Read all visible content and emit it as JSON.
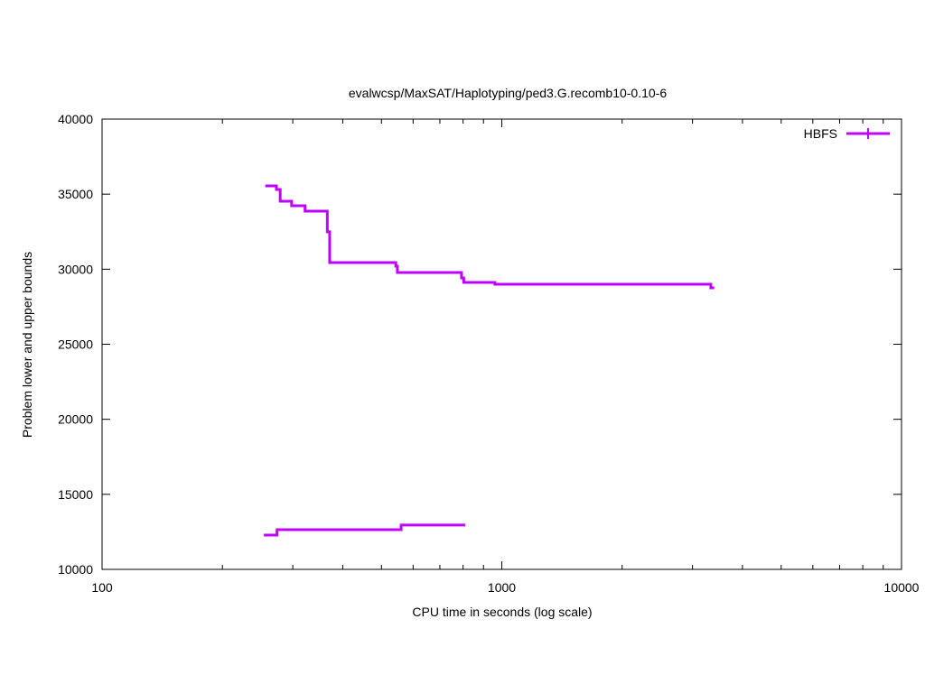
{
  "chart_data": {
    "type": "line",
    "title": "evalwcsp/MaxSAT/Haplotyping/ped3.G.recomb10-0.10-6",
    "xlabel": "CPU time in seconds (log scale)",
    "ylabel": "Problem lower and upper bounds",
    "xscale": "log",
    "xlim": [
      100,
      10000
    ],
    "ylim": [
      10000,
      40000
    ],
    "xticks": [
      100,
      1000,
      10000
    ],
    "xtick_labels": [
      "100",
      "1000",
      "10000"
    ],
    "yticks": [
      10000,
      15000,
      20000,
      25000,
      30000,
      35000,
      40000
    ],
    "ytick_labels": [
      "10000",
      "15000",
      "20000",
      "25000",
      "30000",
      "35000",
      "40000"
    ],
    "grid": false,
    "legend_position": "top-right",
    "series": [
      {
        "name": "HBFS",
        "color": "#bf00ff",
        "step": true,
        "upper_bound": {
          "x": [
            256,
            273,
            279,
            298,
            322,
            366,
            371,
            543,
            548,
            793,
            803,
            961,
            3334,
            3400
          ],
          "y": [
            35550,
            35310,
            34530,
            34230,
            33870,
            32490,
            30440,
            30200,
            29780,
            29420,
            29120,
            29000,
            28760,
            28760
          ]
        },
        "lower_bound": {
          "x": [
            254,
            274,
            560,
            810
          ],
          "y": [
            12285,
            12645,
            12950,
            12950
          ]
        }
      }
    ]
  }
}
